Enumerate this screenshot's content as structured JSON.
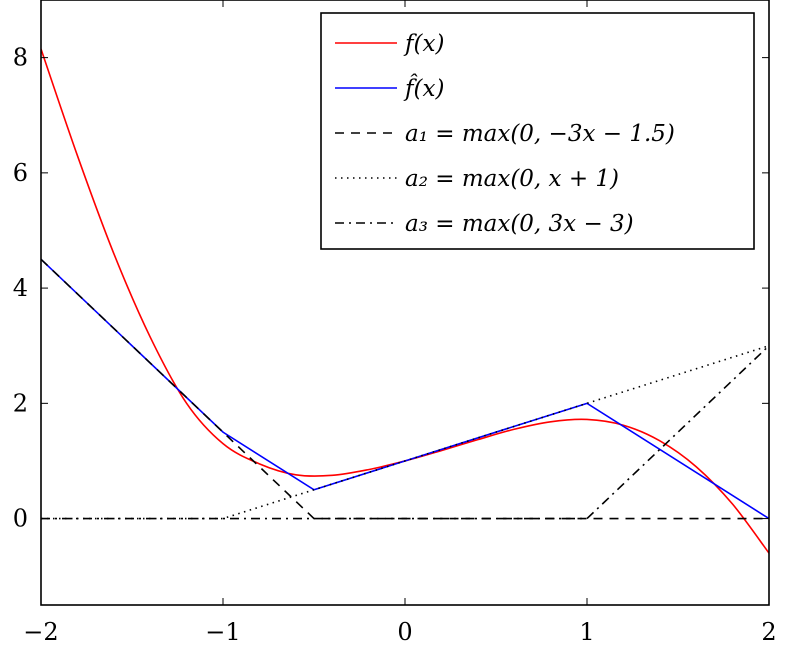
{
  "chart_data": {
    "type": "line",
    "title": "",
    "xlabel": "",
    "ylabel": "",
    "xlim": [
      -2,
      2
    ],
    "ylim": [
      -1.5,
      9
    ],
    "x_ticks": [
      -2,
      -1,
      0,
      1,
      2
    ],
    "x_tick_labels": [
      "−2",
      "−1",
      "0",
      "1",
      "2"
    ],
    "y_ticks": [
      0,
      2,
      4,
      6,
      8
    ],
    "y_tick_labels": [
      "0",
      "2",
      "4",
      "6",
      "8"
    ],
    "grid": false,
    "legend_position": "top-right",
    "series": [
      {
        "name": "f(x)",
        "color": "#ff0000",
        "style": "solid",
        "x": [
          -2,
          -1.8,
          -1.6,
          -1.4,
          -1.2,
          -1.0,
          -0.8,
          -0.6,
          -0.4,
          -0.2,
          0,
          0.2,
          0.4,
          0.6,
          0.8,
          1.0,
          1.2,
          1.4,
          1.6,
          1.8,
          2.0
        ],
        "y": [
          8.15,
          6.3,
          4.6,
          3.15,
          2.0,
          1.3,
          0.95,
          0.76,
          0.75,
          0.85,
          1.0,
          1.18,
          1.37,
          1.55,
          1.68,
          1.72,
          1.62,
          1.35,
          0.9,
          0.25,
          -0.6
        ]
      },
      {
        "name": "f̂(x)",
        "color": "#0000ff",
        "style": "solid",
        "x": [
          -2,
          -1,
          -0.5,
          1,
          2
        ],
        "y": [
          4.5,
          1.5,
          0.5,
          2.0,
          0.0
        ]
      },
      {
        "name": "a1 = max(0, −3x − 1.5)",
        "color": "#000000",
        "style": "dashed",
        "x": [
          -2,
          -0.5,
          2
        ],
        "y": [
          4.5,
          0,
          0
        ]
      },
      {
        "name": "a2 = max(0, x + 1)",
        "color": "#000000",
        "style": "dotted",
        "x": [
          -2,
          -1,
          2
        ],
        "y": [
          0,
          0,
          3
        ]
      },
      {
        "name": "a3 = max(0, 3x − 3)",
        "color": "#000000",
        "style": "dashdot",
        "x": [
          -2,
          1,
          2
        ],
        "y": [
          0,
          0,
          3
        ]
      }
    ],
    "legend": [
      {
        "label": "f(x)",
        "style": "solid",
        "color": "#ff0000"
      },
      {
        "label": "f̂(x)",
        "style": "solid",
        "color": "#0000ff"
      },
      {
        "label": "a₁ = max(0, −3x − 1.5)",
        "style": "dashed",
        "color": "#000000"
      },
      {
        "label": "a₂ = max(0, x + 1)",
        "style": "dotted",
        "color": "#000000"
      },
      {
        "label": "a₃ = max(0, 3x − 3)",
        "style": "dashdot",
        "color": "#000000"
      }
    ]
  }
}
